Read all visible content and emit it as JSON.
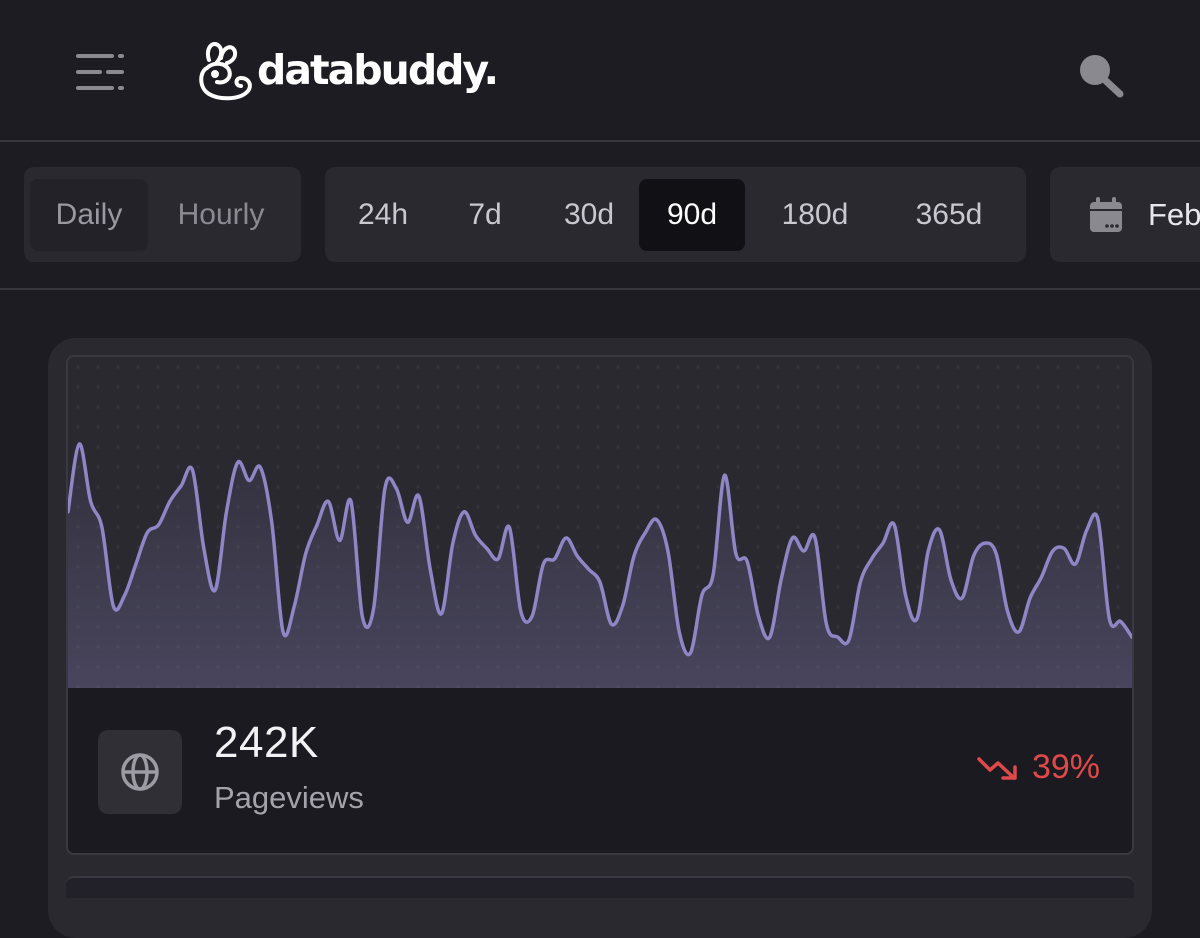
{
  "header": {
    "menu_icon": "hamburger-menu-icon",
    "brand": "databuddy.",
    "search_icon": "search-icon"
  },
  "filters": {
    "granularity": [
      {
        "label": "Daily",
        "active": true
      },
      {
        "label": "Hourly",
        "active": false
      }
    ],
    "ranges": [
      {
        "label": "24h",
        "active": false
      },
      {
        "label": "7d",
        "active": false
      },
      {
        "label": "30d",
        "active": false
      },
      {
        "label": "90d",
        "active": true
      },
      {
        "label": "180d",
        "active": false
      },
      {
        "label": "365d",
        "active": false
      }
    ],
    "date_label": "Feb",
    "date_icon": "calendar-icon"
  },
  "metric": {
    "value": "242K",
    "label": "Pageviews",
    "icon": "globe-icon",
    "change": "39%",
    "change_icon": "trend-down-icon",
    "change_color": "#e0494a",
    "line_color": "#8f86c6",
    "chart_data": {
      "type": "line",
      "series": [
        {
          "values": [
            56,
            82,
            60,
            50,
            20,
            24,
            36,
            48,
            51,
            60,
            66,
            72,
            42,
            26,
            56,
            75,
            68,
            73,
            52,
            10,
            20,
            40,
            51,
            60,
            45,
            60,
            16,
            19,
            65,
            65,
            52,
            62,
            34,
            17,
            44,
            56,
            47,
            42,
            38,
            50,
            18,
            16,
            36,
            38,
            46,
            39,
            34,
            29,
            13,
            20,
            39,
            48,
            53,
            41,
            10,
            2,
            24,
            32,
            70,
            40,
            37,
            16,
            8,
            30,
            46,
            41,
            46,
            13,
            8,
            7,
            29,
            38,
            44,
            51,
            24,
            15,
            41,
            49,
            30,
            23,
            39,
            44,
            40,
            18,
            10,
            23,
            31,
            41,
            42,
            36,
            49,
            53,
            15,
            14,
            8
          ]
        }
      ]
    }
  }
}
